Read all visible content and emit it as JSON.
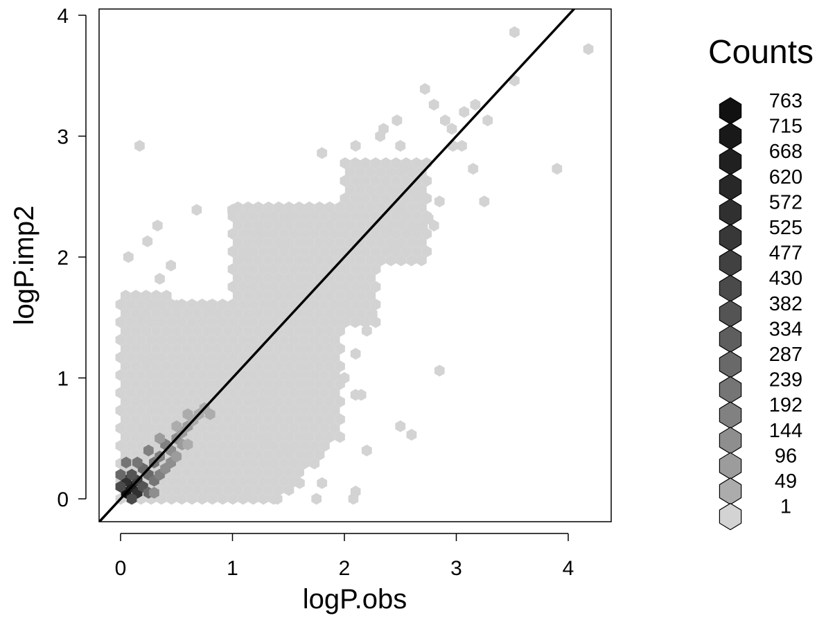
{
  "chart_data": {
    "type": "heatmap",
    "subtype": "hexbin",
    "xlabel": "logP.obs",
    "ylabel": "logP.imp2",
    "xlim": [
      -0.2,
      4.4
    ],
    "ylim": [
      -0.18,
      4.05
    ],
    "x_ticks": [
      0,
      1,
      2,
      3,
      4
    ],
    "y_ticks": [
      0,
      1,
      2,
      3,
      4
    ],
    "x_tick_labels": [
      "0",
      "1",
      "2",
      "3",
      "4"
    ],
    "y_tick_labels": [
      "0",
      "1",
      "2",
      "3",
      "4"
    ],
    "grid": false,
    "reference_line": {
      "intercept": 0,
      "slope": 1,
      "color": "#000000"
    },
    "legend": {
      "title": "Counts",
      "position": "right",
      "levels": [
        {
          "label": "763",
          "color": "#111111"
        },
        {
          "label": "715",
          "color": "#191919"
        },
        {
          "label": "668",
          "color": "#202020"
        },
        {
          "label": "620",
          "color": "#282828"
        },
        {
          "label": "572",
          "color": "#303030"
        },
        {
          "label": "525",
          "color": "#383838"
        },
        {
          "label": "477",
          "color": "#414141"
        },
        {
          "label": "430",
          "color": "#4a4a4a"
        },
        {
          "label": "382",
          "color": "#545454"
        },
        {
          "label": "334",
          "color": "#5e5e5e"
        },
        {
          "label": "287",
          "color": "#696969"
        },
        {
          "label": "239",
          "color": "#757575"
        },
        {
          "label": "192",
          "color": "#818181"
        },
        {
          "label": "144",
          "color": "#8e8e8e"
        },
        {
          "label": "96",
          "color": "#9c9c9c"
        },
        {
          "label": "49",
          "color": "#acacac"
        },
        {
          "label": "1",
          "color": "#d3d3d3"
        }
      ]
    },
    "dense_regions": [
      {
        "x": [
          0.0,
          2.0
        ],
        "y": [
          0.0,
          1.65
        ],
        "level": "1"
      },
      {
        "x": [
          0.0,
          0.5
        ],
        "y": [
          1.3,
          1.75
        ],
        "level": "1"
      },
      {
        "x": [
          0.6,
          1.9
        ],
        "y": [
          0.0,
          0.6
        ],
        "level": "1"
      },
      {
        "x": [
          1.0,
          2.3
        ],
        "y": [
          1.4,
          2.45
        ],
        "level": "1"
      },
      {
        "x": [
          2.0,
          2.75
        ],
        "y": [
          1.9,
          2.8
        ],
        "level": "1"
      }
    ],
    "density_core": [
      {
        "x": 0.05,
        "y": 0.05,
        "level": "763"
      },
      {
        "x": 0.1,
        "y": 0.1,
        "level": "668"
      },
      {
        "x": 0.05,
        "y": 0.15,
        "level": "572"
      },
      {
        "x": 0.15,
        "y": 0.05,
        "level": "572"
      },
      {
        "x": 0.15,
        "y": 0.15,
        "level": "477"
      },
      {
        "x": 0.0,
        "y": 0.1,
        "level": "430"
      },
      {
        "x": 0.1,
        "y": 0.0,
        "level": "430"
      },
      {
        "x": 0.2,
        "y": 0.1,
        "level": "382"
      },
      {
        "x": 0.1,
        "y": 0.2,
        "level": "382"
      },
      {
        "x": 0.2,
        "y": 0.25,
        "level": "287"
      },
      {
        "x": 0.25,
        "y": 0.2,
        "level": "287"
      },
      {
        "x": 0.0,
        "y": 0.2,
        "level": "287"
      },
      {
        "x": 0.25,
        "y": 0.05,
        "level": "287"
      },
      {
        "x": 0.3,
        "y": 0.3,
        "level": "239"
      },
      {
        "x": 0.3,
        "y": 0.15,
        "level": "239"
      },
      {
        "x": 0.15,
        "y": 0.3,
        "level": "239"
      },
      {
        "x": 0.05,
        "y": 0.3,
        "level": "239"
      },
      {
        "x": 0.35,
        "y": 0.35,
        "level": "192"
      },
      {
        "x": 0.4,
        "y": 0.45,
        "level": "192"
      },
      {
        "x": 0.35,
        "y": 0.2,
        "level": "192"
      },
      {
        "x": 0.25,
        "y": 0.4,
        "level": "192"
      },
      {
        "x": 0.45,
        "y": 0.4,
        "level": "144"
      },
      {
        "x": 0.5,
        "y": 0.5,
        "level": "144"
      },
      {
        "x": 0.4,
        "y": 0.25,
        "level": "144"
      },
      {
        "x": 0.45,
        "y": 0.3,
        "level": "144"
      },
      {
        "x": 0.3,
        "y": 0.05,
        "level": "144"
      },
      {
        "x": 0.55,
        "y": 0.55,
        "level": "96"
      },
      {
        "x": 0.6,
        "y": 0.6,
        "level": "96"
      },
      {
        "x": 0.5,
        "y": 0.35,
        "level": "96"
      },
      {
        "x": 0.55,
        "y": 0.45,
        "level": "96"
      },
      {
        "x": 0.35,
        "y": 0.5,
        "level": "96"
      },
      {
        "x": 0.65,
        "y": 0.65,
        "level": "49"
      },
      {
        "x": 0.7,
        "y": 0.7,
        "level": "49"
      },
      {
        "x": 0.6,
        "y": 0.45,
        "level": "49"
      },
      {
        "x": 0.75,
        "y": 0.75,
        "level": "49"
      },
      {
        "x": 0.8,
        "y": 0.7,
        "level": "49"
      },
      {
        "x": 0.6,
        "y": 0.7,
        "level": "49"
      },
      {
        "x": 0.5,
        "y": 0.6,
        "level": "49"
      }
    ],
    "outliers": [
      {
        "x": 0.17,
        "y": 2.92
      },
      {
        "x": 0.07,
        "y": 2.0
      },
      {
        "x": 0.33,
        "y": 2.26
      },
      {
        "x": 0.24,
        "y": 2.13
      },
      {
        "x": 0.68,
        "y": 2.39
      },
      {
        "x": 1.0,
        "y": 2.39
      },
      {
        "x": 0.45,
        "y": 1.93
      },
      {
        "x": 0.35,
        "y": 1.82
      },
      {
        "x": 0.22,
        "y": 0.6
      },
      {
        "x": 0.25,
        "y": 1.15
      },
      {
        "x": 1.48,
        "y": 2.33
      },
      {
        "x": 1.45,
        "y": 2.1
      },
      {
        "x": 1.25,
        "y": 2.2
      },
      {
        "x": 1.1,
        "y": 2.0
      },
      {
        "x": 1.8,
        "y": 2.86
      },
      {
        "x": 2.1,
        "y": 2.92
      },
      {
        "x": 2.32,
        "y": 3.0
      },
      {
        "x": 2.35,
        "y": 3.06
      },
      {
        "x": 2.47,
        "y": 3.13
      },
      {
        "x": 2.5,
        "y": 2.92
      },
      {
        "x": 2.52,
        "y": 2.73
      },
      {
        "x": 2.57,
        "y": 2.73
      },
      {
        "x": 2.72,
        "y": 3.39
      },
      {
        "x": 2.8,
        "y": 3.26
      },
      {
        "x": 2.9,
        "y": 3.13
      },
      {
        "x": 2.96,
        "y": 3.06
      },
      {
        "x": 3.07,
        "y": 3.2
      },
      {
        "x": 3.17,
        "y": 3.26
      },
      {
        "x": 3.28,
        "y": 3.13
      },
      {
        "x": 3.52,
        "y": 3.86
      },
      {
        "x": 3.52,
        "y": 3.46
      },
      {
        "x": 4.18,
        "y": 3.72
      },
      {
        "x": 3.9,
        "y": 2.73
      },
      {
        "x": 3.25,
        "y": 2.46
      },
      {
        "x": 3.15,
        "y": 2.73
      },
      {
        "x": 3.05,
        "y": 2.92
      },
      {
        "x": 2.97,
        "y": 2.92
      },
      {
        "x": 2.85,
        "y": 2.46
      },
      {
        "x": 2.75,
        "y": 2.32
      },
      {
        "x": 2.8,
        "y": 2.26
      },
      {
        "x": 2.7,
        "y": 2.26
      },
      {
        "x": 2.65,
        "y": 2.52
      },
      {
        "x": 2.6,
        "y": 2.26
      },
      {
        "x": 2.5,
        "y": 2.39
      },
      {
        "x": 2.45,
        "y": 2.06
      },
      {
        "x": 2.38,
        "y": 2.2
      },
      {
        "x": 2.25,
        "y": 1.53
      },
      {
        "x": 2.2,
        "y": 1.39
      },
      {
        "x": 2.1,
        "y": 1.2
      },
      {
        "x": 2.15,
        "y": 0.86
      },
      {
        "x": 2.1,
        "y": 0.86
      },
      {
        "x": 2.0,
        "y": 1.0
      },
      {
        "x": 2.85,
        "y": 1.06
      },
      {
        "x": 2.5,
        "y": 0.6
      },
      {
        "x": 2.6,
        "y": 0.53
      },
      {
        "x": 2.2,
        "y": 0.4
      },
      {
        "x": 2.1,
        "y": 0.06
      },
      {
        "x": 2.08,
        "y": 0.0
      },
      {
        "x": 1.8,
        "y": 0.13
      },
      {
        "x": 1.6,
        "y": 0.13
      },
      {
        "x": 1.4,
        "y": 0.0
      },
      {
        "x": 1.75,
        "y": 0.0
      },
      {
        "x": 1.5,
        "y": 0.4
      },
      {
        "x": 1.3,
        "y": 0.5
      },
      {
        "x": 1.25,
        "y": 0.8
      },
      {
        "x": 0.22,
        "y": 1.5
      },
      {
        "x": 0.5,
        "y": 1.6
      },
      {
        "x": 0.8,
        "y": 1.6
      }
    ]
  }
}
